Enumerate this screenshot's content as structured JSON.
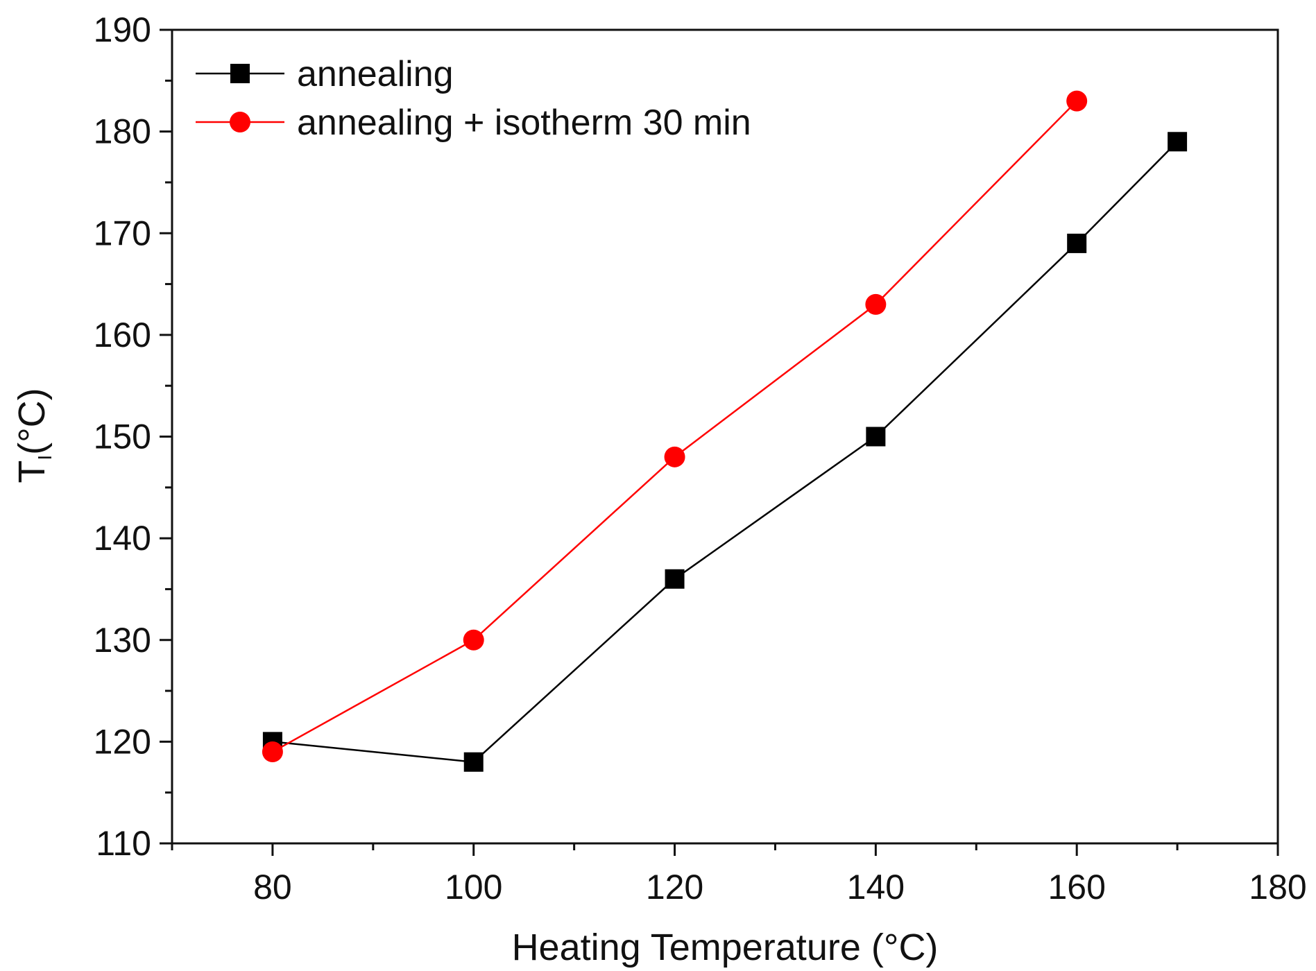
{
  "chart_data": {
    "type": "line",
    "title": "",
    "xlabel": "Heating Temperature (°C)",
    "ylabel_main": "T",
    "ylabel_sub": "I",
    "ylabel_unit": "(°C)",
    "xlim": [
      70,
      180
    ],
    "ylim": [
      110,
      190
    ],
    "x_major_ticks": [
      80,
      100,
      120,
      140,
      160,
      180
    ],
    "x_minor_ticks": [
      70,
      90,
      110,
      130,
      150,
      170
    ],
    "y_major_ticks": [
      110,
      120,
      130,
      140,
      150,
      160,
      170,
      180,
      190
    ],
    "y_minor_ticks": [
      115,
      125,
      135,
      145,
      155,
      165,
      175,
      185
    ],
    "grid": false,
    "legend_position": "top-left",
    "series": [
      {
        "name": "annealing",
        "marker": "square",
        "color": "#000000",
        "x": [
          80,
          100,
          120,
          140,
          160,
          170
        ],
        "y": [
          120,
          118,
          136,
          150,
          169,
          179
        ]
      },
      {
        "name": "annealing + isotherm 30 min",
        "marker": "circle",
        "color": "#ff0000",
        "x": [
          80,
          100,
          120,
          140,
          160
        ],
        "y": [
          119,
          130,
          148,
          163,
          183
        ]
      }
    ]
  }
}
